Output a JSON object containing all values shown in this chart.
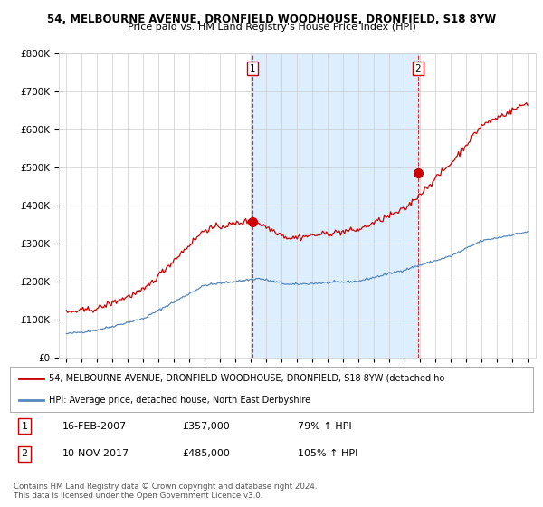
{
  "title1": "54, MELBOURNE AVENUE, DRONFIELD WOODHOUSE, DRONFIELD, S18 8YW",
  "title2": "Price paid vs. HM Land Registry's House Price Index (HPI)",
  "ylim": [
    0,
    800000
  ],
  "yticks": [
    0,
    100000,
    200000,
    300000,
    400000,
    500000,
    600000,
    700000,
    800000
  ],
  "ytick_labels": [
    "£0",
    "£100K",
    "£200K",
    "£300K",
    "£400K",
    "£500K",
    "£600K",
    "£700K",
    "£800K"
  ],
  "sale1_date": 2007.12,
  "sale1_price": 357000,
  "sale1_label": "1",
  "sale2_date": 2017.87,
  "sale2_price": 485000,
  "sale2_label": "2",
  "legend_line1": "54, MELBOURNE AVENUE, DRONFIELD WOODHOUSE, DRONFIELD, S18 8YW (detached ho",
  "legend_line2": "HPI: Average price, detached house, North East Derbyshire",
  "table_row1": [
    "1",
    "16-FEB-2007",
    "£357,000",
    "79% ↑ HPI"
  ],
  "table_row2": [
    "2",
    "10-NOV-2017",
    "£485,000",
    "105% ↑ HPI"
  ],
  "footer1": "Contains HM Land Registry data © Crown copyright and database right 2024.",
  "footer2": "This data is licensed under the Open Government Licence v3.0.",
  "red_color": "#cc0000",
  "blue_color": "#5588bb",
  "shade_color": "#ddeeff",
  "bg_color": "#ffffff",
  "grid_color": "#cccccc"
}
